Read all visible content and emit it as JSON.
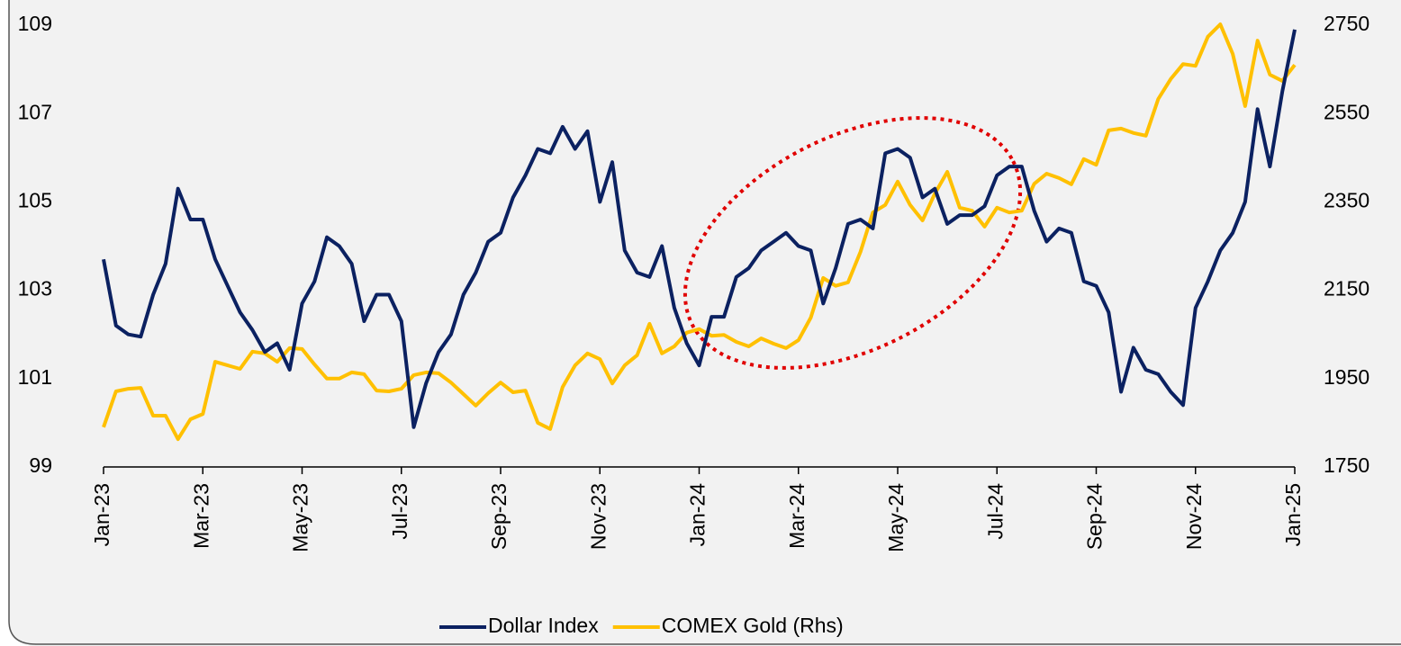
{
  "chart_data": {
    "type": "line",
    "categories": [
      "Jan-23",
      null,
      null,
      null,
      null,
      null,
      null,
      null,
      "Mar-23",
      null,
      null,
      null,
      null,
      null,
      null,
      null,
      "May-23",
      null,
      null,
      null,
      null,
      null,
      null,
      null,
      "Jul-23",
      null,
      null,
      null,
      null,
      null,
      null,
      null,
      "Sep-23",
      null,
      null,
      null,
      null,
      null,
      null,
      null,
      "Nov-23",
      null,
      null,
      null,
      null,
      null,
      null,
      null,
      "Jan-24",
      null,
      null,
      null,
      null,
      null,
      null,
      null,
      "Mar-24",
      null,
      null,
      null,
      null,
      null,
      null,
      null,
      "May-24",
      null,
      null,
      null,
      null,
      null,
      null,
      null,
      "Jul-24",
      null,
      null,
      null,
      null,
      null,
      null,
      null,
      "Sep-24",
      null,
      null,
      null,
      null,
      null,
      null,
      null,
      "Nov-24",
      null,
      null,
      null,
      null,
      null,
      null,
      null,
      "Jan-25"
    ],
    "series": [
      {
        "name": "Dollar Index",
        "color": "#0b2161",
        "values": [
          103.7,
          102.2,
          102.0,
          101.95,
          102.9,
          103.6,
          105.3,
          104.6,
          104.6,
          103.7,
          103.1,
          102.5,
          102.1,
          101.6,
          101.8,
          101.2,
          102.7,
          103.2,
          104.2,
          104.0,
          103.6,
          102.3,
          102.9,
          102.9,
          102.3,
          99.9,
          100.9,
          101.6,
          102.0,
          102.9,
          103.4,
          104.1,
          104.3,
          105.1,
          105.6,
          106.2,
          106.1,
          106.7,
          106.2,
          106.6,
          105.0,
          105.9,
          103.9,
          103.4,
          103.3,
          104.0,
          102.6,
          101.8,
          101.3,
          102.4,
          102.4,
          103.3,
          103.5,
          103.9,
          104.1,
          104.3,
          104.0,
          103.9,
          102.7,
          103.5,
          104.5,
          104.6,
          104.4,
          106.1,
          106.2,
          106.0,
          105.1,
          105.3,
          104.5,
          104.7,
          104.7,
          104.9,
          105.6,
          105.8,
          105.8,
          104.8,
          104.1,
          104.4,
          104.3,
          103.2,
          103.1,
          102.5,
          100.7,
          101.7,
          101.2,
          101.1,
          100.7,
          100.4,
          102.6,
          103.2,
          103.9,
          104.3,
          105.0,
          107.1,
          105.8,
          107.5,
          108.9
        ]
      },
      {
        "name": "COMEX Gold (Rhs)",
        "color": "#ffc000",
        "axis": "y2",
        "values": [
          1840,
          1921,
          1927,
          1929,
          1866,
          1866,
          1813,
          1858,
          1870,
          1988,
          1980,
          1972,
          2011,
          2007,
          1988,
          2019,
          2017,
          1982,
          1950,
          1950,
          1964,
          1960,
          1923,
          1921,
          1927,
          1958,
          1964,
          1962,
          1941,
          1915,
          1889,
          1917,
          1941,
          1919,
          1923,
          1850,
          1836,
          1931,
          1980,
          2007,
          1994,
          1939,
          1980,
          2003,
          2074,
          2007,
          2023,
          2054,
          2062,
          2047,
          2049,
          2033,
          2023,
          2041,
          2029,
          2019,
          2037,
          2088,
          2178,
          2160,
          2168,
          2237,
          2326,
          2343,
          2396,
          2343,
          2308,
          2369,
          2418,
          2337,
          2330,
          2294,
          2337,
          2326,
          2330,
          2391,
          2414,
          2404,
          2390,
          2447,
          2434,
          2512,
          2516,
          2506,
          2500,
          2583,
          2628,
          2662,
          2658,
          2724,
          2752,
          2685,
          2567,
          2715,
          2638,
          2624,
          2660
        ]
      }
    ],
    "ylim": [
      99,
      109
    ],
    "yticks": [
      99,
      101,
      103,
      105,
      107,
      109
    ],
    "y2lim": [
      1750,
      2750
    ],
    "y2ticks": [
      1750,
      1950,
      2150,
      2350,
      2550,
      2750
    ],
    "legend": "bottom"
  }
}
